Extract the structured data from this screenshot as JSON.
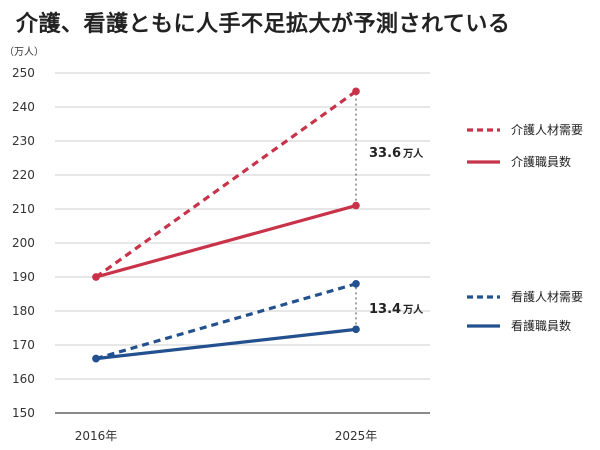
{
  "chart_data": {
    "type": "line",
    "title": "介護、看護ともに人手不足拡大が予測されている",
    "y_unit": "（万人）",
    "ylim": [
      150,
      250
    ],
    "y_ticks": [
      150,
      160,
      170,
      180,
      190,
      200,
      210,
      220,
      230,
      240,
      250
    ],
    "categories": [
      "2016年",
      "2025年"
    ],
    "grid": true,
    "series": [
      {
        "name": "介護人材需要",
        "values": [
          190,
          244.6
        ],
        "color": "#c8334a",
        "dashed": true,
        "group": "kaigo"
      },
      {
        "name": "介護職員数",
        "values": [
          190,
          211
        ],
        "color": "#c8334a",
        "dashed": false,
        "group": "kaigo"
      },
      {
        "name": "看護人材需要",
        "values": [
          166,
          188
        ],
        "color": "#23508e",
        "dashed": true,
        "group": "kango"
      },
      {
        "name": "看護職員数",
        "values": [
          166,
          174.6
        ],
        "color": "#23508e",
        "dashed": false,
        "group": "kango"
      }
    ],
    "annotations": [
      {
        "category": "2025年",
        "from": 211,
        "to": 244.6,
        "value": "33.6",
        "unit": "万人"
      },
      {
        "category": "2025年",
        "from": 174.6,
        "to": 188,
        "value": "13.4",
        "unit": "万人"
      }
    ],
    "legend_position": "right"
  }
}
